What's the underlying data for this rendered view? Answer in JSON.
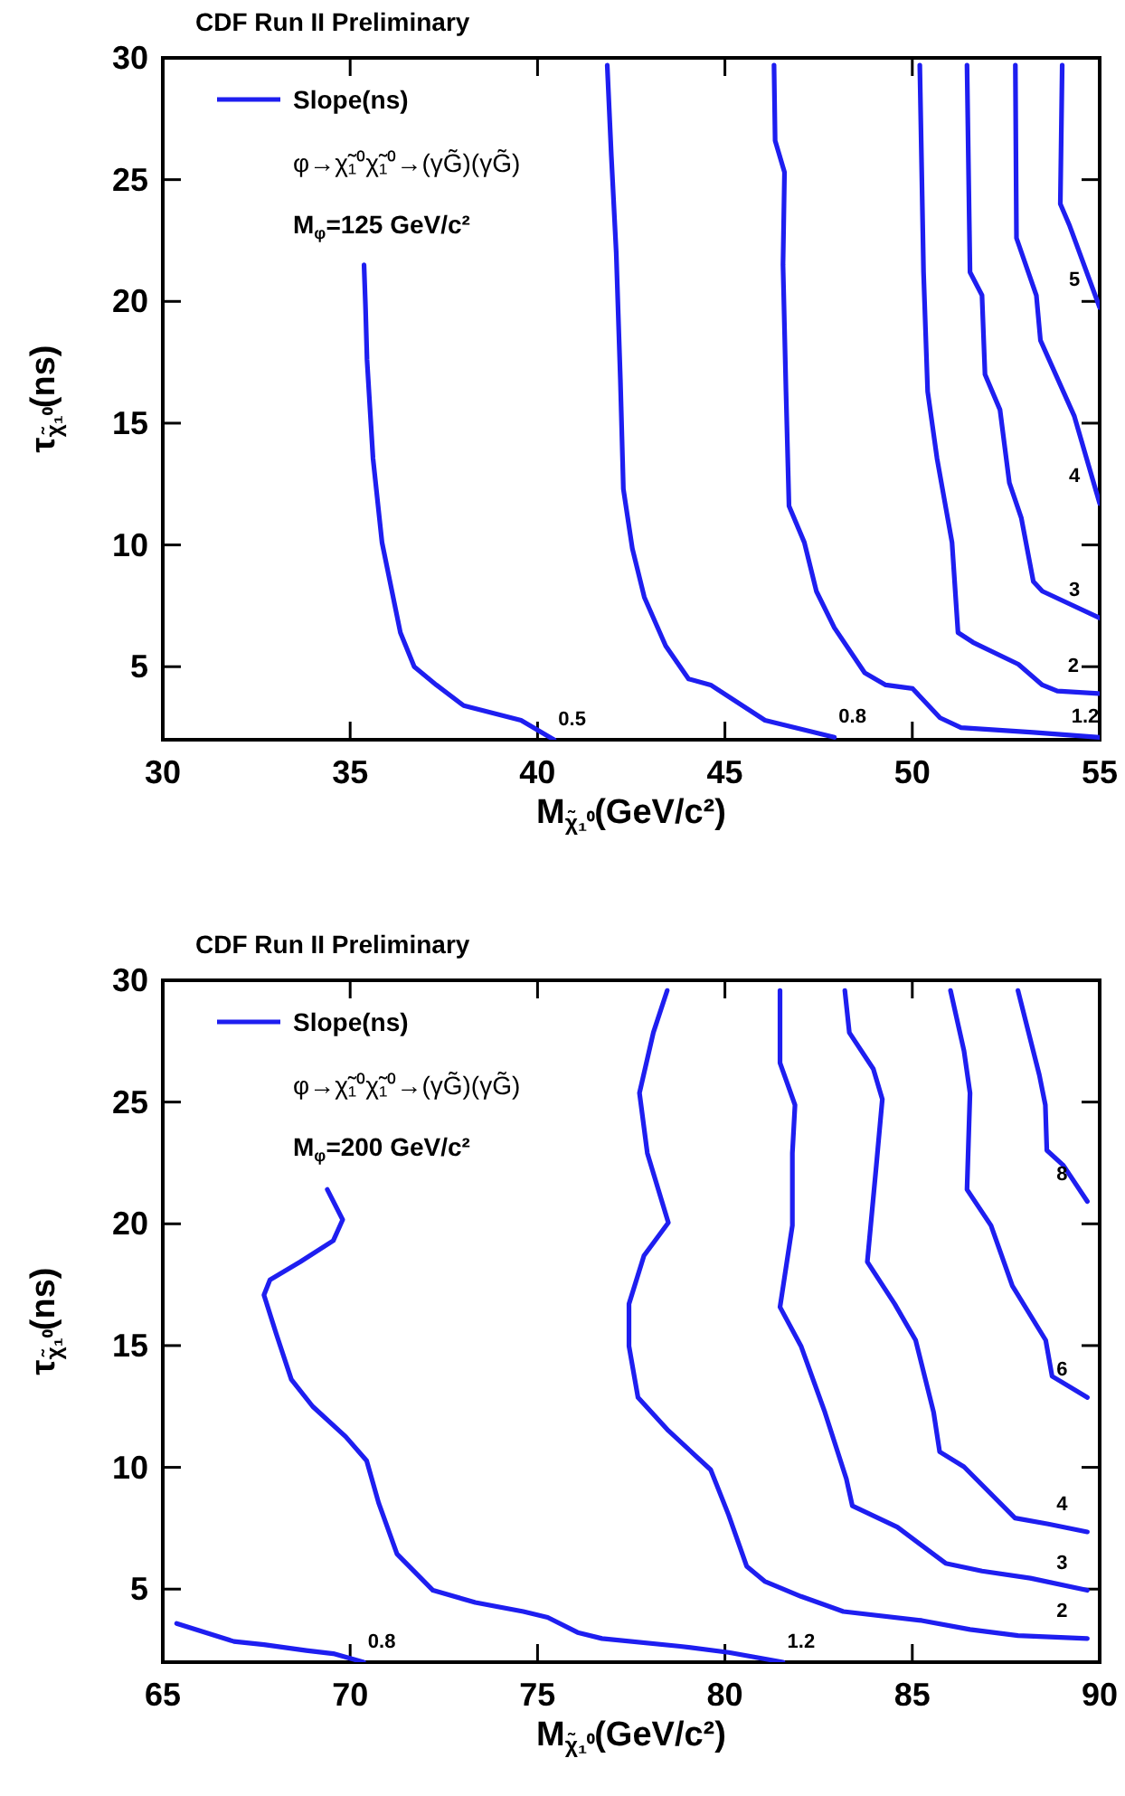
{
  "chart_data": [
    {
      "type": "line",
      "title": "CDF Run II Preliminary",
      "xlabel": "M$_{χ̃₁⁰}$(GeV/c²)",
      "ylabel": "τ$_{χ̃₁⁰}$(ns)",
      "legend_title": "Slope(ns)",
      "xlim": [
        30,
        55
      ],
      "ylim": [
        2,
        30
      ],
      "xticks": [
        30,
        35,
        40,
        45,
        50,
        55
      ],
      "yticks": [
        5,
        10,
        15,
        20,
        25,
        30
      ],
      "series": [
        {
          "name": "0.5",
          "color": "#1e1ef0",
          "x": [
            35.37,
            35.41,
            35.45,
            35.61,
            35.85,
            36.34,
            36.71,
            37.3,
            38.03,
            39.56,
            40.44
          ],
          "values": [
            21.5,
            19.75,
            17.6,
            13.55,
            10.1,
            6.4,
            5.0,
            4.25,
            3.4,
            2.8,
            2.0
          ]
        },
        {
          "name": "0.8",
          "color": "#1e1ef0",
          "x": [
            41.86,
            41.97,
            42.1,
            42.21,
            42.29,
            42.53,
            42.85,
            43.42,
            44.03,
            44.62,
            46.07,
            47.92
          ],
          "values": [
            29.7,
            25.95,
            22.0,
            16.8,
            12.3,
            9.85,
            7.85,
            5.85,
            4.5,
            4.25,
            2.8,
            2.1
          ]
        },
        {
          "name": "1.2",
          "color": "#1e1ef0",
          "x": [
            46.31,
            46.34,
            46.59,
            46.55,
            46.63,
            46.71,
            47.12,
            47.44,
            47.92,
            48.73,
            49.29,
            50.01,
            50.74,
            51.3,
            53.23,
            55.0
          ],
          "values": [
            29.7,
            26.6,
            25.3,
            21.5,
            16.3,
            11.6,
            10.1,
            8.1,
            6.6,
            4.75,
            4.25,
            4.1,
            2.9,
            2.5,
            2.3,
            2.1
          ]
        },
        {
          "name": "2",
          "color": "#1e1ef0",
          "x": [
            50.2,
            50.3,
            50.41,
            50.66,
            51.06,
            51.22,
            51.62,
            52.83,
            53.47,
            53.87,
            54.97
          ],
          "values": [
            29.7,
            21.2,
            16.3,
            13.55,
            10.1,
            6.4,
            6.0,
            5.1,
            4.25,
            4.0,
            3.9
          ]
        },
        {
          "name": "3",
          "color": "#1e1ef0",
          "x": [
            51.46,
            51.54,
            51.86,
            51.94,
            52.34,
            52.59,
            52.91,
            53.23,
            53.47,
            55.0
          ],
          "values": [
            29.7,
            21.2,
            20.25,
            17.0,
            15.55,
            12.55,
            11.1,
            8.5,
            8.1,
            7.0
          ]
        },
        {
          "name": "4",
          "color": "#1e1ef0",
          "x": [
            52.75,
            52.78,
            53.31,
            53.42,
            54.32,
            55.0
          ],
          "values": [
            29.7,
            22.6,
            20.25,
            18.4,
            15.3,
            11.7
          ]
        },
        {
          "name": "5",
          "color": "#1e1ef0",
          "x": [
            54.0,
            53.95,
            54.2,
            55.0
          ],
          "values": [
            29.7,
            24.0,
            23.1,
            19.75
          ]
        }
      ],
      "annotations": [
        "φ→χ̃₁⁰χ̃₁⁰→(γG̃)(γG̃)",
        "M$_{φ}$=125 GeV/c²"
      ]
    },
    {
      "type": "line",
      "title": "CDF Run II Preliminary",
      "xlabel": "M$_{χ̃₁⁰}$(GeV/c²)",
      "ylabel": "τ$_{χ̃₁⁰}$(ns)",
      "legend_title": "Slope(ns)",
      "xlim": [
        65,
        90
      ],
      "ylim": [
        2,
        30
      ],
      "xticks": [
        65,
        70,
        75,
        80,
        85,
        90
      ],
      "yticks": [
        5,
        10,
        15,
        20,
        25,
        30
      ],
      "series": [
        {
          "name": "0.8",
          "color": "#1e1ef0",
          "x": [
            65.37,
            66.9,
            67.7,
            68.83,
            69.55,
            70.36
          ],
          "values": [
            3.59,
            2.85,
            2.72,
            2.48,
            2.35,
            2.0
          ]
        },
        {
          "name": "1.2",
          "color": "#1e1ef0",
          "x": [
            69.39,
            69.8,
            69.55,
            68.67,
            67.86,
            67.7,
            68.03,
            68.43,
            69.0,
            69.88,
            70.44,
            70.76,
            71.25,
            72.21,
            73.34,
            74.62,
            75.27,
            76.07,
            76.72,
            78.81,
            80.1,
            81.55
          ],
          "values": [
            21.41,
            20.17,
            19.31,
            18.44,
            17.7,
            17.08,
            15.47,
            13.61,
            12.5,
            11.26,
            10.27,
            8.54,
            6.44,
            4.95,
            4.45,
            4.08,
            3.84,
            3.22,
            2.97,
            2.65,
            2.4,
            2.0
          ]
        },
        {
          "name": "2",
          "color": "#1e1ef0",
          "x": [
            78.46,
            78.09,
            77.72,
            77.93,
            78.49,
            77.84,
            77.44,
            77.44,
            77.68,
            78.49,
            79.62,
            80.1,
            80.58,
            81.06,
            82.03,
            83.16,
            85.25,
            86.54,
            87.82,
            89.67
          ],
          "values": [
            29.58,
            27.85,
            25.37,
            22.9,
            20.05,
            18.69,
            16.71,
            14.98,
            12.87,
            11.51,
            9.9,
            8.04,
            5.94,
            5.32,
            4.7,
            4.08,
            3.71,
            3.34,
            3.09,
            2.97
          ]
        },
        {
          "name": "3",
          "color": "#1e1ef0",
          "x": [
            81.47,
            81.47,
            81.87,
            81.8,
            81.8,
            81.47,
            82.03,
            82.67,
            83.24,
            83.4,
            84.6,
            85.89,
            86.86,
            88.15,
            89.67
          ],
          "values": [
            29.58,
            26.61,
            24.88,
            22.9,
            19.93,
            16.58,
            14.98,
            12.25,
            9.53,
            8.42,
            7.55,
            6.06,
            5.74,
            5.45,
            4.95
          ]
        },
        {
          "name": "4",
          "color": "#1e1ef0",
          "x": [
            83.2,
            83.32,
            83.96,
            84.2,
            84.04,
            83.8,
            84.53,
            85.09,
            85.57,
            85.73,
            86.38,
            87.74,
            88.63,
            89.67
          ],
          "values": [
            29.58,
            27.85,
            26.36,
            25.12,
            22.4,
            18.44,
            16.71,
            15.22,
            12.25,
            10.64,
            10.02,
            7.92,
            7.67,
            7.35
          ]
        },
        {
          "name": "6",
          "color": "#1e1ef0",
          "x": [
            86.02,
            86.38,
            86.54,
            86.46,
            87.1,
            87.67,
            88.56,
            88.73,
            89.67
          ],
          "values": [
            29.58,
            27.1,
            25.37,
            21.41,
            19.93,
            17.45,
            15.22,
            13.74,
            12.87
          ]
        },
        {
          "name": "8",
          "color": "#1e1ef0",
          "x": [
            87.82,
            88.39,
            88.55,
            88.59,
            89.03,
            89.67
          ],
          "values": [
            29.58,
            26.11,
            24.88,
            23.02,
            22.4,
            20.92
          ]
        }
      ],
      "annotations": [
        "φ→χ̃₁⁰χ̃₁⁰→(γG̃)(γG̃)",
        "M$_{φ}$=200 GeV/c²"
      ]
    }
  ]
}
